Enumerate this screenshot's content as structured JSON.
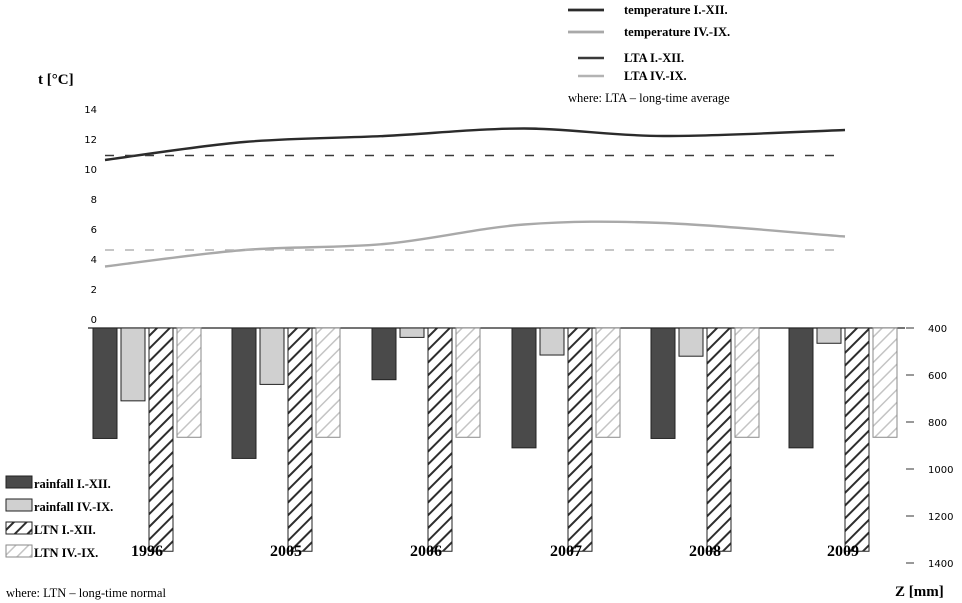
{
  "chart_data": [
    {
      "type": "line",
      "ylabel": "t [°C]",
      "ylim": [
        0,
        14
      ],
      "yticks": [
        "0",
        "2",
        "4",
        "6",
        "8",
        "10",
        "12",
        "14"
      ],
      "x": [
        "1996",
        "2005",
        "2006",
        "2007",
        "2008",
        "2009"
      ],
      "series": [
        {
          "name": "temperature I.-XII.",
          "values": [
            10.6,
            11.8,
            12.2,
            12.7,
            12.2,
            12.6
          ],
          "color": "#2b2b2b",
          "style": "solid"
        },
        {
          "name": "temperature IV.-IX.",
          "values": [
            3.5,
            4.6,
            5.0,
            6.3,
            6.4,
            5.5
          ],
          "color": "#a9a9a9",
          "style": "solid"
        },
        {
          "name": "LTA I.-XII.",
          "values": [
            10.9,
            10.9,
            10.9,
            10.9,
            10.9,
            10.9
          ],
          "color": "#3a3a3a",
          "style": "dashed"
        },
        {
          "name": "LTA IV.-IX.",
          "values": [
            4.6,
            4.6,
            4.6,
            4.6,
            4.6,
            4.6
          ],
          "color": "#b3b3b3",
          "style": "dashed"
        }
      ],
      "legend_position": "top-right",
      "legend_note": "where: LTA – long-time average"
    },
    {
      "type": "bar",
      "ylabel": "Z [mm]",
      "ylim": [
        400,
        1400
      ],
      "yticks": [
        "400",
        "600",
        "800",
        "1000",
        "1200",
        "1400"
      ],
      "inverted": true,
      "categories": [
        "1996",
        "2005",
        "2006",
        "2007",
        "2008",
        "2009"
      ],
      "series": [
        {
          "name": "rainfall I.-XII.",
          "values": [
            870,
            955,
            620,
            910,
            870,
            910
          ],
          "color": "#4a4a4a",
          "pattern": "solid"
        },
        {
          "name": "rainfall IV.-IX.",
          "values": [
            710,
            640,
            440,
            515,
            520,
            465
          ],
          "color": "#d0d0d0",
          "pattern": "solid"
        },
        {
          "name": "LTN I.-XII.",
          "values": [
            1350,
            1350,
            1350,
            1350,
            1350,
            1350
          ],
          "color": "#2e2e2e",
          "pattern": "hatch"
        },
        {
          "name": "LTN IV.-IX.",
          "values": [
            865,
            865,
            865,
            865,
            865,
            865
          ],
          "color": "#bdbdbd",
          "pattern": "hatch"
        }
      ],
      "legend_position": "bottom-left",
      "legend_note": "where: LTN – long-time normal"
    }
  ]
}
